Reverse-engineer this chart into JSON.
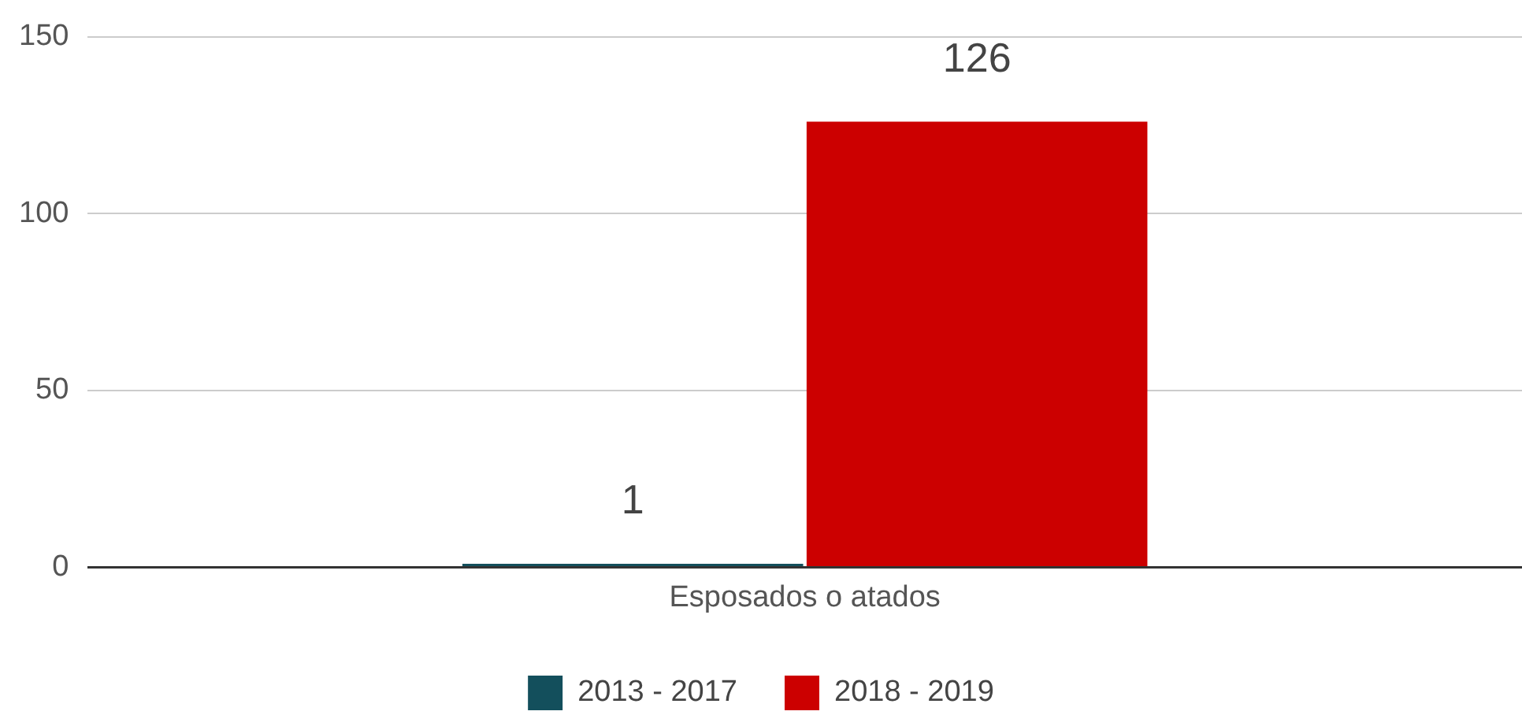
{
  "chart_data": {
    "type": "bar",
    "categories": [
      "Esposados o atados"
    ],
    "series": [
      {
        "name": "2013 - 2017",
        "color": "#134f5c",
        "values": [
          1
        ]
      },
      {
        "name": "2018 - 2019",
        "color": "#cc0000",
        "values": [
          126
        ]
      }
    ],
    "ylim": [
      0,
      150
    ],
    "yticks": [
      0,
      50,
      100,
      150
    ],
    "grid": "y",
    "legend": "bottom",
    "data_labels": true
  }
}
